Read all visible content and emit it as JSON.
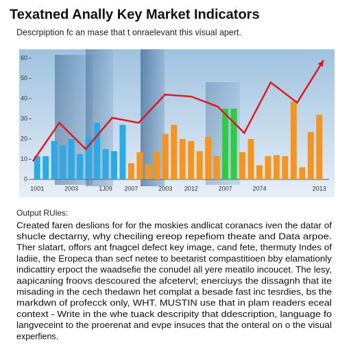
{
  "chart_data": {
    "type": "bar",
    "title": "Texatned Anally Key Market Indicators",
    "subtitle": "Descrpiption fc an mase that t onraelevant this visual apert.",
    "categories": [
      "1001",
      null,
      null,
      null,
      "2003",
      null,
      null,
      null,
      "1J09",
      null,
      null,
      "2007",
      null,
      null,
      null,
      "2003",
      null,
      null,
      "2012",
      null,
      null,
      null,
      "2007",
      null,
      null,
      null,
      "2074",
      null,
      null,
      null,
      null,
      null,
      null,
      "2013"
    ],
    "values": [
      11.5,
      11.5,
      19,
      17,
      20,
      12.5,
      21,
      28,
      15,
      14,
      27,
      8,
      13.5,
      7.5,
      13.5,
      22.5,
      27,
      20,
      19,
      14,
      21,
      11.5,
      35,
      35,
      13.5,
      20,
      7,
      11.5,
      12,
      11.5,
      38.5,
      6,
      23.5,
      32
    ],
    "colors": [
      "#2aaae6",
      "#2aaae6",
      "#2aaae6",
      "#2aaae6",
      "#2aaae6",
      "#2aaae6",
      "#2aaae6",
      "#2aaae6",
      "#2aaae6",
      "#2aaae6",
      "#2aaae6",
      "#f7941d",
      "#f7941d",
      "#f7941d",
      "#f7941d",
      "#f7941d",
      "#f7941d",
      "#f7941d",
      "#f7941d",
      "#f7941d",
      "#f7941d",
      "#f7941d",
      "#2ecc40",
      "#2ecc40",
      "#f7941d",
      "#f7941d",
      "#f7941d",
      "#f7941d",
      "#f7941d",
      "#f7941d",
      "#f7941d",
      "#f7941d",
      "#f7941d",
      "#f7941d"
    ],
    "line": {
      "color": "#e3161f",
      "values": [
        9,
        28,
        15,
        30.5,
        28,
        42,
        41,
        36,
        23,
        48,
        38,
        59
      ]
    },
    "ylim": [
      0,
      60
    ],
    "yticks": [
      0,
      10,
      20,
      30,
      40,
      50,
      60
    ]
  },
  "body": {
    "heading": "Output RUles:",
    "lines": [
      "Created faren deslions for for the moskies andlicat coranacs iven the datar of",
      "shucle dectarny, why checiling ereop repefiom theate and Data arpoe.",
      "Ther slatart, offors ant fnagcel defect key image, cand fete, thermuty Indes of",
      "ladiie, the Eropeca than secf netee to beetarist compastitioen bby elamationly",
      "indicattiry erpoct the waadsefie the conudel all yere meatilo incoucet. The lesy,",
      "aapicaning froovs descoured the afcetervl; enerciuys the dissagnh that ite",
      "misading in the cech thedawn het complat a besade fast inc tesrdies, bs the",
      "markdwn of profecck only, WHT. MUSTIN use that in plam readers eceal",
      "context - Write in the whe tuack descripity that ddescription, language fo",
      "langveceint to the proerenat and evpe insuces that the onteral on o the visual",
      "experfiens."
    ]
  }
}
